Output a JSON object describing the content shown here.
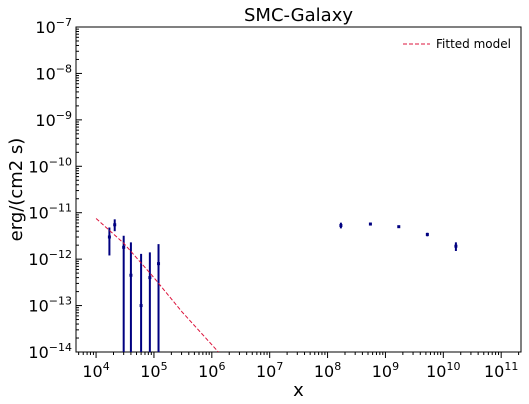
{
  "chart_data": {
    "type": "scatter",
    "title": "SMC-Galaxy",
    "xlabel": "x",
    "ylabel": "erg/(cm2 s)",
    "xscale": "log",
    "yscale": "log",
    "xlim": [
      4500.0,
      220000000000.0
    ],
    "ylim": [
      1e-14,
      1e-07
    ],
    "x_tick_labels": [
      "10^4",
      "10^5",
      "10^6",
      "10^7",
      "10^8",
      "10^9",
      "10^10",
      "10^11"
    ],
    "y_tick_labels": [
      "10^-14",
      "10^-13",
      "10^-12",
      "10^-11",
      "10^-10",
      "10^-9",
      "10^-8",
      "10^-7"
    ],
    "grid": false,
    "legend_position": "top-right",
    "series": [
      {
        "name": "",
        "color": "#000080",
        "kind": "errorbar",
        "points": [
          {
            "x": 17000.0,
            "y": 3e-12,
            "ylo": 1.2e-12,
            "yhi": 4.8e-12
          },
          {
            "x": 21000.0,
            "y": 5.5e-12,
            "ylo": 4e-12,
            "yhi": 7.2e-12
          },
          {
            "x": 30000.0,
            "y": 1.8e-12,
            "ylo": 1e-14,
            "yhi": 3.2e-12
          },
          {
            "x": 40000.0,
            "y": 4.5e-13,
            "ylo": 1e-14,
            "yhi": 2.3e-12
          },
          {
            "x": 60000.0,
            "y": 1e-13,
            "ylo": 1e-14,
            "yhi": 1.3e-12
          },
          {
            "x": 85000.0,
            "y": 4e-13,
            "ylo": 1e-14,
            "yhi": 1.4e-12
          },
          {
            "x": 120000.0,
            "y": 8e-13,
            "ylo": 1e-14,
            "yhi": 2.1e-12
          },
          {
            "x": 170000000.0,
            "y": 5.3e-12,
            "ylo": 4.6e-12,
            "yhi": 6.1e-12
          },
          {
            "x": 550000000.0,
            "y": 5.7e-12,
            "ylo": 5.3e-12,
            "yhi": 6.1e-12
          },
          {
            "x": 1700000000.0,
            "y": 5e-12,
            "ylo": 4.7e-12,
            "yhi": 5.3e-12
          },
          {
            "x": 5300000000.0,
            "y": 3.4e-12,
            "ylo": 3.1e-12,
            "yhi": 3.7e-12
          },
          {
            "x": 16500000000.0,
            "y": 1.9e-12,
            "ylo": 1.5e-12,
            "yhi": 2.3e-12
          }
        ]
      },
      {
        "name": "Fitted model",
        "color": "#dc143c",
        "kind": "dashed-line",
        "x": [
          10000.0,
          30000.0,
          100000.0,
          300000.0,
          1300000.0
        ],
        "y": [
          7.5e-12,
          2.2e-12,
          4e-13,
          7.5e-14,
          1e-14
        ]
      }
    ]
  }
}
